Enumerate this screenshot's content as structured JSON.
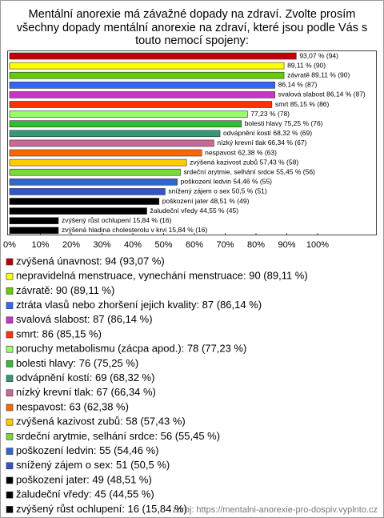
{
  "chart_data": {
    "type": "bar",
    "orientation": "horizontal",
    "title": [
      "Mentální anorexie má závažné dopady na zdraví. Zvolte prosím",
      "všechny dopady mentální anorexie na zdraví, které jsou podle Vás s",
      "touto nemocí spojeny:"
    ],
    "categories": [
      "zvýšená únavnost: 94 (93,07 %)",
      "nepravidelná menstruace, vynechání menstruace: 90 (89,11 %)",
      "závratě: 90 (89,11 %)",
      "ztráta vlasů nebo zhoršení jejich kvality: 87 (86,14 %)",
      "svalová slabost: 87 (86,14 %)",
      "smrt: 86 (85,15 %)",
      "poruchy metabolismu (zácpa apod.): 78 (77,23 %)",
      "bolesti hlavy: 76 (75,25 %)",
      "odvápnění kostí: 69 (68,32 %)",
      "nízký krevní tlak: 67 (66,34 %)",
      "nespavost: 63 (62,38 %)",
      "zvýšená kazivost zubů: 58 (57,43 %)",
      "srdeční arytmie, selhání srdce: 56 (55,45 %)",
      "poškození ledvin: 55 (54,46 %)",
      "snížený zájem o sex: 51 (50,5 %)",
      "poškození jater: 49 (48,51 %)",
      "žaludeční vředy: 45 (44,55 %)",
      "zvýšený růst ochlupení: 16 (15,84 %)",
      "zvýšená hladina cholesterolu v krvi: 16 (15,84 %)"
    ],
    "values": [
      93.07,
      89.11,
      89.11,
      86.14,
      86.14,
      85.15,
      77.23,
      75.25,
      68.32,
      66.34,
      62.38,
      57.43,
      55.45,
      54.46,
      50.5,
      48.51,
      44.55,
      15.84,
      15.84
    ],
    "value_labels": [
      "93,07 % (94)",
      "89,11 % (90)",
      "závratě 89,11 % (90)",
      "86,14 % (87)",
      "svalová slabost 86,14 % (87)",
      "smrt 85,15 % (86)",
      "77,23 % (78)",
      "bolesti hlavy 75,25 % (76)",
      "odvápnění kostí 68,32 % (69)",
      "nízký krevní tlak 66,34 % (67)",
      "nespavost 62,38 % (63)",
      "zvýšená kazivost zubů 57,43 % (58)",
      "srdeční arytmie, selhání srdce 55,45 % (56)",
      "poškození ledvin 54,46 % (55)",
      "snížený zájem o sex 50,5 % (51)",
      "poškození jater 48,51 % (49)",
      "žaludeční vředy 44,55 % (45)",
      "zvýšený růst ochlupení 15,84 % (16)",
      "zvýšená hladina cholesterolu v krvi 15,84 % (16)"
    ],
    "colors": [
      "#c00000",
      "#ffff00",
      "#66cc00",
      "#3366ff",
      "#cc33cc",
      "#ff3300",
      "#99ff66",
      "#33bb33",
      "#339977",
      "#cc6699",
      "#ff6600",
      "#ffcc00",
      "#77dd33",
      "#3366cc",
      "#3355cc",
      "#000000",
      "#000000",
      "#000000",
      "#000000"
    ],
    "xlim": [
      0,
      100
    ],
    "xticks": [
      {
        "value": 0,
        "label": "0%"
      },
      {
        "value": 10,
        "label": "10%"
      },
      {
        "value": 20,
        "label": "20%"
      },
      {
        "value": 30,
        "label": "30%"
      },
      {
        "value": 40,
        "label": "40%"
      },
      {
        "value": 50,
        "label": "50%"
      },
      {
        "value": 60,
        "label": "60%"
      },
      {
        "value": 70,
        "label": "70%"
      },
      {
        "value": 80,
        "label": "80%"
      },
      {
        "value": 90,
        "label": "90%"
      },
      {
        "value": 100,
        "label": "100%"
      }
    ],
    "source": "zdroj: https://mentalni-anorexie-pro-dospiv.vyplnto.cz"
  }
}
